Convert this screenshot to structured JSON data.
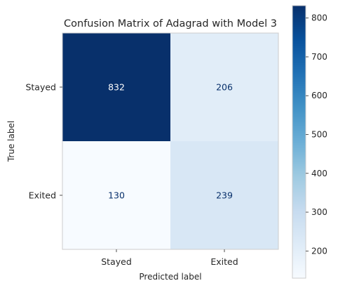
{
  "chart_data": {
    "type": "heatmap",
    "title": "Confusion Matrix of Adagrad with Model 3",
    "xlabel": "Predicted label",
    "ylabel": "True label",
    "x_categories": [
      "Stayed",
      "Exited"
    ],
    "y_categories": [
      "Stayed",
      "Exited"
    ],
    "values": [
      [
        832,
        206
      ],
      [
        130,
        239
      ]
    ],
    "colormap": "Blues",
    "colorbar": {
      "range": [
        130,
        832
      ],
      "ticks": [
        200,
        300,
        400,
        500,
        600,
        700,
        800
      ]
    },
    "grid": false
  }
}
